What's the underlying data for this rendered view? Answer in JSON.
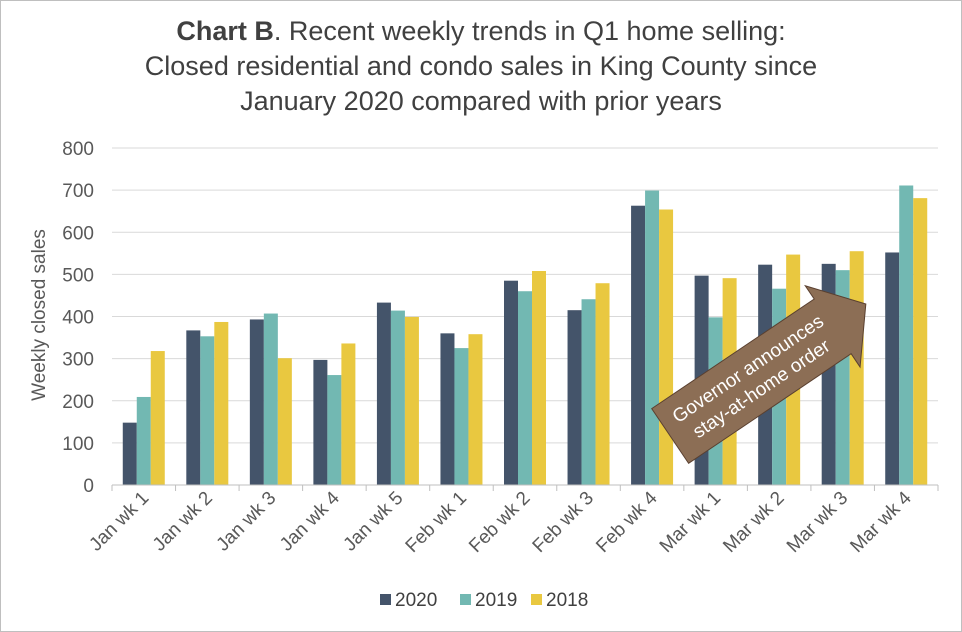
{
  "chart_data": {
    "type": "bar",
    "title_bold": "Chart B",
    "title_rest": ". Recent weekly trends in Q1 home selling:",
    "subtitle_line2": "Closed residential and condo sales in King County since",
    "subtitle_line3": "January 2020 compared with prior years",
    "xlabel": "",
    "ylabel": "Weekly closed sales",
    "ylim": [
      0,
      800
    ],
    "yticks": [
      0,
      100,
      200,
      300,
      400,
      500,
      600,
      700,
      800
    ],
    "grid": true,
    "legend_position": "bottom",
    "categories": [
      "Jan wk 1",
      "Jan wk 2",
      "Jan wk 3",
      "Jan wk 4",
      "Jan wk 5",
      "Feb wk 1",
      "Feb wk 2",
      "Feb wk 3",
      "Feb wk 4",
      "Mar wk 1",
      "Mar wk 2",
      "Mar wk 3",
      "Mar wk 4"
    ],
    "series": [
      {
        "name": "2020",
        "color": "#44546a",
        "values": [
          148,
          367,
          393,
          297,
          433,
          360,
          485,
          415,
          663,
          497,
          523,
          525,
          552
        ]
      },
      {
        "name": "2019",
        "color": "#72b8b2",
        "values": [
          209,
          353,
          407,
          261,
          414,
          325,
          460,
          441,
          699,
          398,
          466,
          510,
          711
        ]
      },
      {
        "name": "2018",
        "color": "#e9c840",
        "values": [
          318,
          387,
          301,
          336,
          399,
          358,
          508,
          479,
          654,
          491,
          547,
          555,
          681
        ]
      }
    ],
    "annotation": {
      "text_line1": "Governor announces",
      "text_line2": "stay-at-home order",
      "color": "#8c6e55"
    }
  }
}
